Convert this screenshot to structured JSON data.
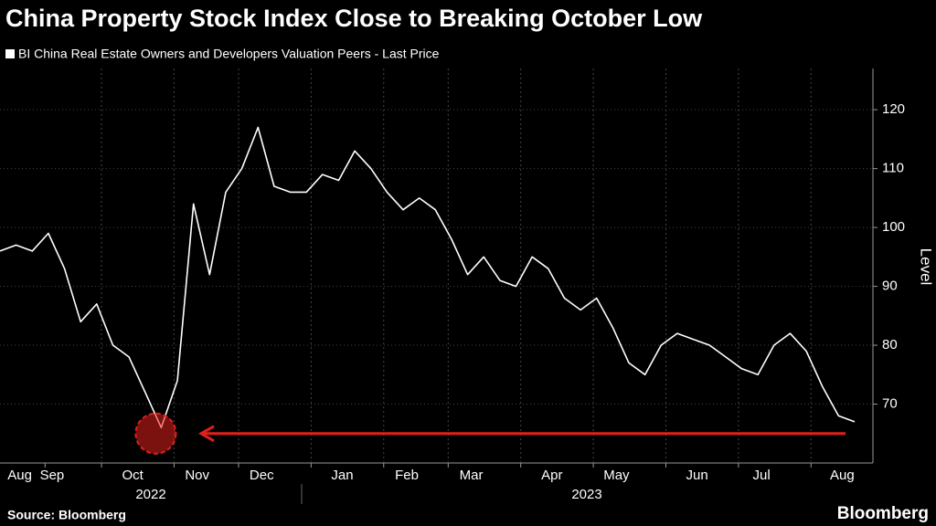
{
  "chart_data": {
    "type": "line",
    "title": "China Property Stock Index Close to Breaking October Low",
    "series": [
      {
        "name": "BI China Real Estate Owners and Developers Valuation Peers - Last Price",
        "color": "#ffffff",
        "values": [
          96,
          97,
          96,
          99,
          93,
          84,
          87,
          80,
          78,
          72,
          66,
          74,
          104,
          92,
          106,
          110,
          117,
          107,
          106,
          106,
          109,
          108,
          113,
          110,
          106,
          103,
          105,
          103,
          98,
          92,
          95,
          91,
          90,
          95,
          93,
          88,
          86,
          88,
          83,
          77,
          75,
          80,
          82,
          81,
          80,
          78,
          76,
          75,
          80,
          82,
          79,
          73,
          68,
          67
        ]
      }
    ],
    "categories": [
      null,
      "Aug",
      null,
      "Sep",
      null,
      null,
      null,
      null,
      "Oct",
      null,
      null,
      null,
      "Nov",
      null,
      null,
      null,
      "Dec",
      null,
      null,
      null,
      null,
      "Jan",
      null,
      null,
      null,
      "Feb",
      null,
      null,
      null,
      "Mar",
      null,
      null,
      null,
      null,
      "Apr",
      null,
      null,
      null,
      "May",
      null,
      null,
      null,
      null,
      "Jun",
      null,
      null,
      null,
      "Jul",
      null,
      null,
      null,
      null,
      "Aug",
      null
    ],
    "year_labels": [
      "2022",
      "2023"
    ],
    "ylabel": "Level",
    "ylim": [
      60,
      127
    ],
    "yticks": [
      70,
      80,
      90,
      100,
      110,
      120
    ],
    "grid": true,
    "reference_line": {
      "value": 65,
      "color": "#e0201b"
    },
    "source": "Source: Bloomberg",
    "brand": "Bloomberg"
  }
}
